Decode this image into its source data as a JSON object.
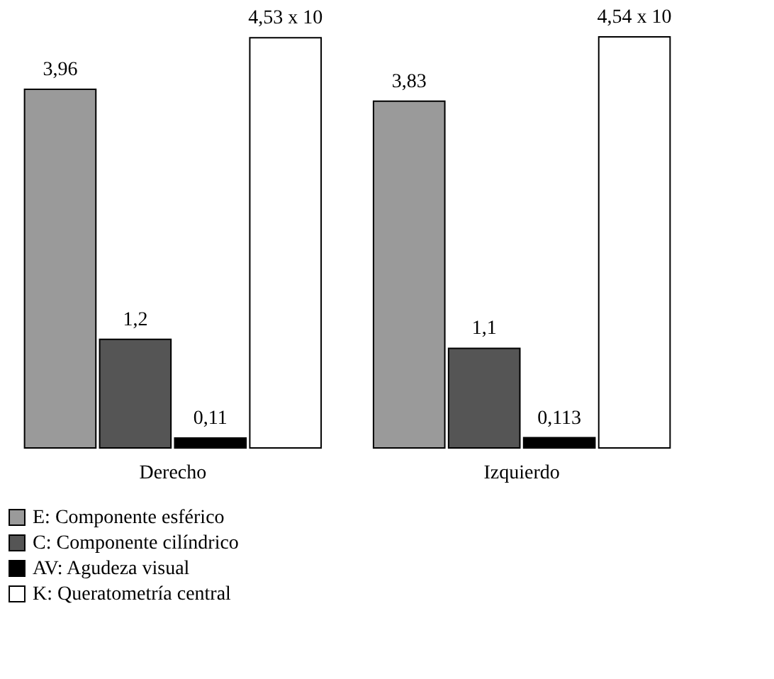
{
  "chart_data": {
    "type": "bar",
    "categories": [
      "Derecho",
      "Izquierdo"
    ],
    "series": [
      {
        "name": "E: Componente esférico",
        "color": "#9a9a9a",
        "values": [
          3.96,
          3.83
        ],
        "value_labels": [
          "3,96",
          "3,83"
        ]
      },
      {
        "name": "C: Componente cilíndrico",
        "color": "#555555",
        "values": [
          1.2,
          1.1
        ],
        "value_labels": [
          "1,2",
          "1,1"
        ]
      },
      {
        "name": "AV: Agudeza visual",
        "color": "#000000",
        "values": [
          0.11,
          0.113
        ],
        "value_labels": [
          "0,11",
          "0,113"
        ]
      },
      {
        "name": "K: Queratometría central",
        "color": "#ffffff",
        "values": [
          4.53,
          4.54
        ],
        "value_labels": [
          "4,53 x 10",
          "4,54 x 10"
        ]
      }
    ],
    "legend": "bottom left",
    "grid": false
  }
}
